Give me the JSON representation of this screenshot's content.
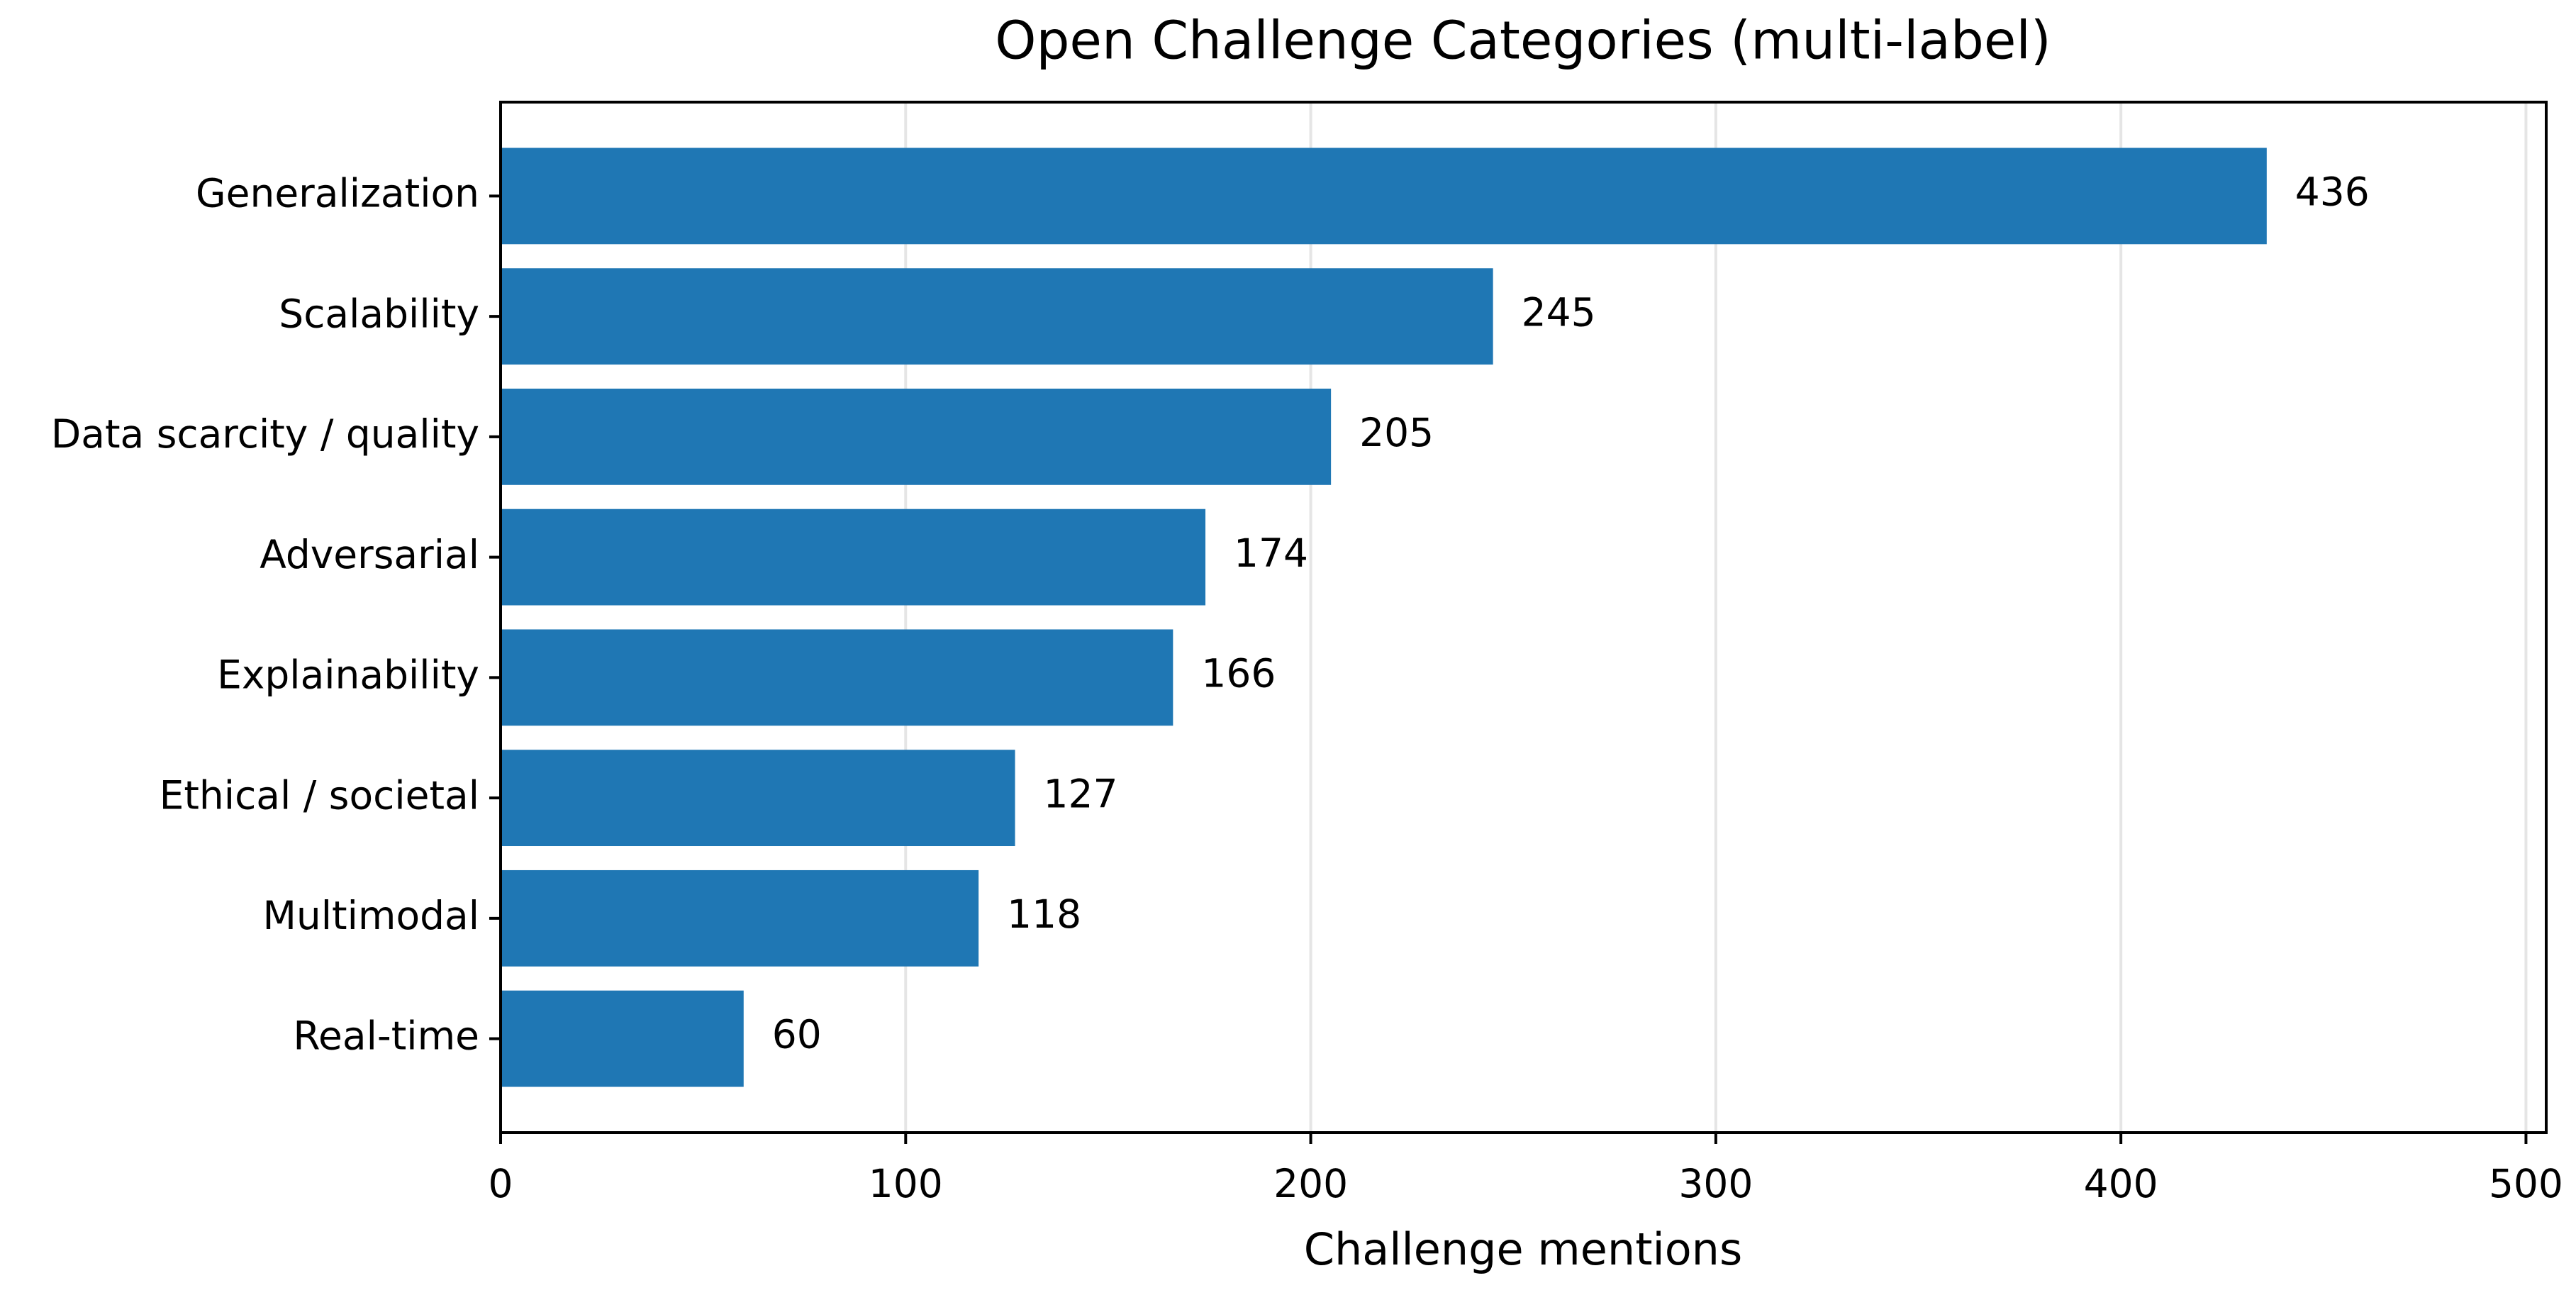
{
  "chart_data": {
    "type": "barh",
    "title": "Open Challenge Categories (multi-label)",
    "x_label": "Challenge mentions",
    "categories": [
      "Generalization",
      "Scalability",
      "Data scarcity / quality",
      "Adversarial",
      "Explainability",
      "Ethical / societal",
      "Multimodal",
      "Real-time"
    ],
    "values": [
      436,
      245,
      205,
      174,
      166,
      127,
      118,
      60
    ],
    "color": "#1f77b4",
    "xlim": [
      0,
      505
    ],
    "xticks": [
      0,
      100,
      200,
      300,
      400,
      500
    ],
    "grid": true
  }
}
